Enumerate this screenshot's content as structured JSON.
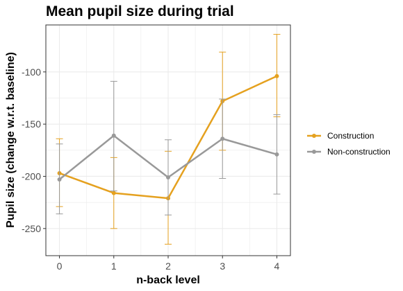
{
  "chart_data": {
    "type": "line",
    "title": "Mean pupil size during trial",
    "xlabel": "n-back level",
    "ylabel": "Pupil size (change w.r.t. baseline)",
    "x": [
      0,
      1,
      2,
      3,
      4
    ],
    "x_ticks": [
      "0",
      "1",
      "2",
      "3",
      "4"
    ],
    "xlim": [
      -0.25,
      4.25
    ],
    "y_ticks": [
      -250,
      -200,
      -150,
      -100
    ],
    "ylim": [
      -276,
      -55
    ],
    "grid": true,
    "legend_position": "right",
    "series": [
      {
        "name": "Construction",
        "color": "#E5A11F",
        "values": [
          -197,
          -216,
          -221,
          -128,
          -104
        ],
        "error_low": [
          -229,
          -250,
          -265,
          -175,
          -143
        ],
        "error_high": [
          -164,
          -182,
          -176,
          -81,
          -64
        ]
      },
      {
        "name": "Non-construction",
        "color": "#999999",
        "values": [
          -203,
          -161,
          -201,
          -164,
          -179
        ],
        "error_low": [
          -236,
          -214,
          -237,
          -202,
          -217
        ],
        "error_high": [
          -169,
          -109,
          -165,
          -126,
          -141
        ]
      }
    ]
  }
}
